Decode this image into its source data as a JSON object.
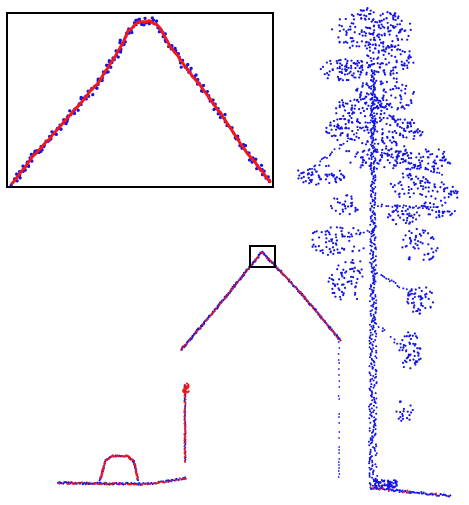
{
  "figure": {
    "background": "#ffffff",
    "point_color_blue": "#1414e6",
    "point_color_red": "#f01818",
    "frame_color": "#000000",
    "panels": [
      {
        "name": "inset-panel",
        "content": "zoomed-roof-apex"
      },
      {
        "name": "main-panel",
        "content": "building-and-tree-point-cloud"
      }
    ]
  }
}
